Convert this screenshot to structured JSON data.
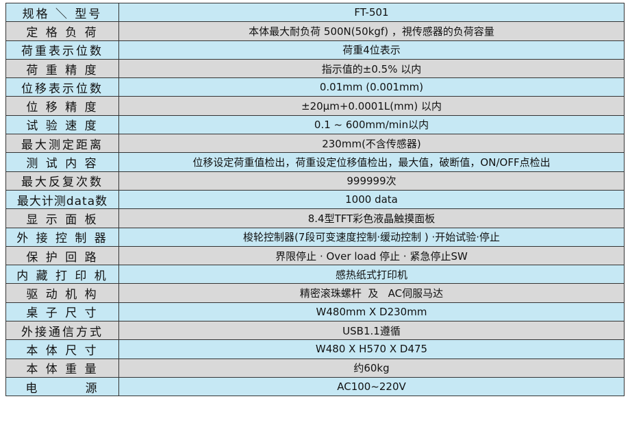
{
  "colors": {
    "row_blue": "#c6e8f4",
    "row_gray": "#d9d9d9",
    "border": "#333333"
  },
  "rows": [
    {
      "label": "规格 ＼ 型号",
      "value": "FT-501"
    },
    {
      "label": "定 格 负 荷",
      "value": "本体最大耐负荷 500N(50kgf) ，視传感器的负荷容量"
    },
    {
      "label": "荷重表示位数",
      "value": "荷重4位表示"
    },
    {
      "label": "荷 重 精 度",
      "value": "指示值的±0.5% 以内"
    },
    {
      "label": "位移表示位数",
      "value": "0.01mm (0.001mm)"
    },
    {
      "label": "位 移 精 度",
      "value": "±20μm+0.0001L(mm) 以内"
    },
    {
      "label": "试 验 速 度",
      "value": "0.1 ~ 600mm/min以内"
    },
    {
      "label": "最大测定距离",
      "value": "230mm(不含传感器)"
    },
    {
      "label": "测 试 内 容",
      "value": "位移设定荷重值检出，荷重设定位移值检出，最大值，破断值，ON/OFF点检出"
    },
    {
      "label": "最大反复次数",
      "value": "999999次"
    },
    {
      "label": "最大计测data数",
      "value": "1000 data"
    },
    {
      "label": "显 示 面 板",
      "value": "8.4型TFT彩色液晶触摸面板"
    },
    {
      "label": "外 接 控 制 器",
      "value": "梭轮控制器(7段可变速度控制·缓动控制 ) ·开始试验·停止"
    },
    {
      "label": "保 护 回 路",
      "value": "界限停止 · Over load 停止 · 紧急停止SW"
    },
    {
      "label": "内 藏 打 印 机",
      "value": "感热纸式打印机"
    },
    {
      "label": "驱 动 机 构",
      "value": "精密滚珠螺杆  及   AC伺服马达"
    },
    {
      "label": "桌 子 尺 寸",
      "value": "W480mm X D230mm"
    },
    {
      "label": "外接通信方式",
      "value": "USB1.1遵循"
    },
    {
      "label": "本 体 尺 寸",
      "value": "W480 X H570 X D475"
    },
    {
      "label": "本 体 重 量",
      "value": "约60kg"
    },
    {
      "label": "电        源",
      "value": "AC100~220V"
    }
  ]
}
